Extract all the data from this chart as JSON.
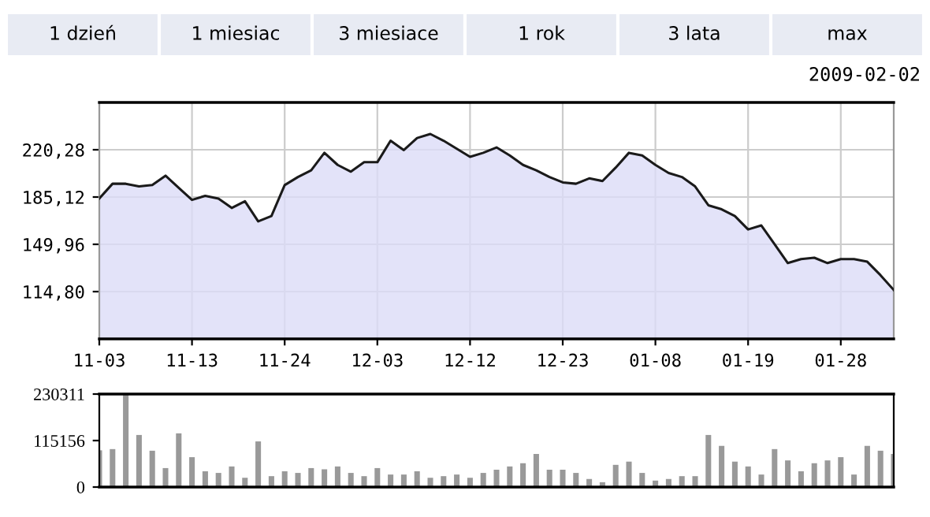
{
  "chart_data": [
    {
      "type": "area",
      "annotations": [
        "1 dzień",
        "1 miesiac",
        "3 miesiace",
        "1 rok",
        "3 lata",
        "max",
        "2009-02-02"
      ],
      "categories": [
        "11-03",
        null,
        null,
        null,
        null,
        null,
        null,
        "11-13",
        null,
        null,
        null,
        null,
        null,
        null,
        "11-24",
        null,
        null,
        null,
        null,
        null,
        null,
        "12-03",
        null,
        null,
        null,
        null,
        null,
        null,
        "12-12",
        null,
        null,
        null,
        null,
        null,
        null,
        "12-23",
        null,
        null,
        null,
        null,
        null,
        null,
        "01-08",
        null,
        null,
        null,
        null,
        null,
        null,
        "01-19",
        null,
        null,
        null,
        null,
        null,
        null,
        "01-28",
        null,
        null,
        null,
        null
      ],
      "series": [
        {
          "color": "#1a1a1a",
          "values": [
            184,
            195,
            195,
            193,
            194,
            201,
            192,
            183,
            186,
            184,
            177,
            182,
            167,
            171,
            194,
            200,
            205,
            218,
            209,
            204,
            211,
            211,
            227,
            220,
            229,
            232,
            227,
            221,
            215,
            218,
            222,
            216,
            209,
            205,
            200,
            196,
            195,
            199,
            197,
            207,
            218,
            216,
            209,
            203,
            200,
            193,
            179,
            176,
            171,
            161,
            164,
            150,
            136,
            139,
            140,
            136,
            139,
            139,
            137,
            127,
            116
          ]
        }
      ],
      "ylim": [
        79.64,
        255.44
      ],
      "yticks": [
        {
          "value": 114.8,
          "label": "114,80"
        },
        {
          "value": 149.96,
          "label": "149,96"
        },
        {
          "value": 185.12,
          "label": "185,12"
        },
        {
          "value": 220.28,
          "label": "220,28"
        }
      ],
      "grid": true
    },
    {
      "type": "bar",
      "categories": [
        null,
        null,
        null,
        null,
        null,
        null,
        null,
        null,
        null,
        null,
        null,
        null,
        null,
        null,
        null,
        null,
        null,
        null,
        null,
        null,
        null,
        null,
        null,
        null,
        null,
        null,
        null,
        null,
        null,
        null,
        null,
        null,
        null,
        null,
        null,
        null,
        null,
        null,
        null,
        null,
        null,
        null,
        null,
        null,
        null,
        null,
        null,
        null,
        null,
        null,
        null,
        null,
        null,
        null,
        null,
        null,
        null,
        null,
        null,
        null,
        null
      ],
      "series": [
        {
          "color": "#999999",
          "values": [
            91000,
            94000,
            230311,
            129000,
            90000,
            47000,
            133000,
            74000,
            39000,
            35000,
            51000,
            23000,
            113000,
            27000,
            39000,
            35000,
            47000,
            44000,
            51000,
            35000,
            27000,
            47000,
            31000,
            31000,
            39000,
            23000,
            27000,
            31000,
            23000,
            35000,
            43000,
            51000,
            59000,
            82000,
            43000,
            43000,
            35000,
            20000,
            12000,
            55000,
            63000,
            35000,
            16000,
            20000,
            27000,
            27000,
            129000,
            102000,
            63000,
            51000,
            31000,
            94000,
            66000,
            39000,
            59000,
            66000,
            74000,
            31000,
            102000,
            90000,
            82000
          ]
        }
      ],
      "ylim": [
        0,
        230311
      ],
      "yticks": [
        0,
        115156,
        230311
      ],
      "tick_labels": "y"
    }
  ]
}
